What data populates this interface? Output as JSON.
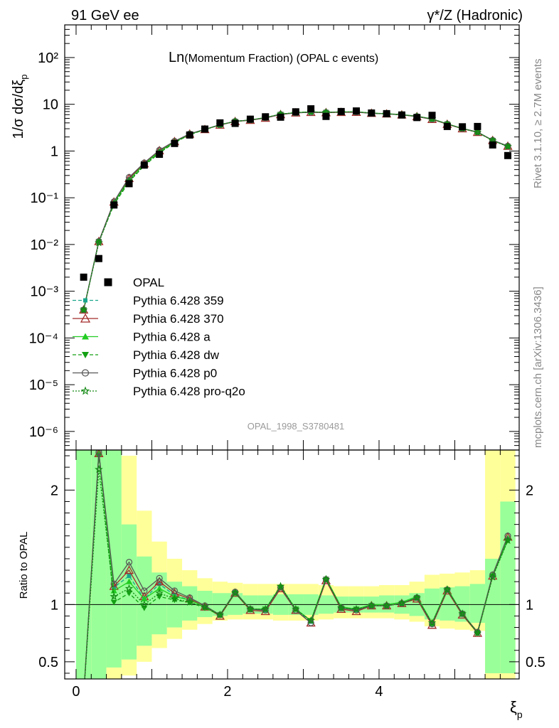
{
  "header": {
    "left": "91 GeV ee",
    "right": "γ*/Z (Hadronic)"
  },
  "title": {
    "big": "Ln",
    "rest": "(Momentum Fraction) (OPAL c events)"
  },
  "side_top": "Rivet 3.1.10, ≥ 2.7M events",
  "side_bottom": "mcplots.cern.ch [arXiv:1306.3436]",
  "analysis_label": "OPAL_1998_S3780481",
  "chart_data": [
    {
      "type": "scatter",
      "name": "main",
      "ylabel": "1/σ dσ/dξp",
      "yscale": "log",
      "ylim": [
        4e-07,
        500
      ],
      "xlim": [
        -0.15,
        5.85
      ],
      "y_ticks": [
        {
          "v": 100,
          "label": "10²"
        },
        {
          "v": 10,
          "label": "10"
        },
        {
          "v": 1,
          "label": "1"
        },
        {
          "v": 0.1,
          "label": "10⁻¹"
        },
        {
          "v": 0.01,
          "label": "10⁻²"
        },
        {
          "v": 0.001,
          "label": "10⁻³"
        },
        {
          "v": 0.0001,
          "label": "10⁻⁴"
        },
        {
          "v": 1e-05,
          "label": "10⁻⁵"
        },
        {
          "v": 1e-06,
          "label": "10⁻⁶"
        }
      ],
      "x": [
        0.1,
        0.3,
        0.5,
        0.7,
        0.9,
        1.1,
        1.3,
        1.5,
        1.7,
        1.9,
        2.1,
        2.3,
        2.5,
        2.7,
        2.9,
        3.1,
        3.3,
        3.5,
        3.7,
        3.9,
        4.1,
        4.3,
        4.5,
        4.7,
        4.9,
        5.1,
        5.3,
        5.5,
        5.7
      ],
      "data": {
        "name": "OPAL",
        "y": [
          0.002,
          0.005,
          0.07,
          0.2,
          0.5,
          0.85,
          1.45,
          2.2,
          2.95,
          4.0,
          3.9,
          4.8,
          5.4,
          5.3,
          6.9,
          8.0,
          5.5,
          7.0,
          7.2,
          6.5,
          6.3,
          5.9,
          5.2,
          5.8,
          3.35,
          3.3,
          3.35,
          1.35,
          0.8
        ]
      },
      "legend": [
        {
          "name": "OPAL",
          "color": "#000000",
          "marker": "square",
          "dash": "none"
        },
        {
          "name": "Pythia 6.428 359",
          "color": "#1aa68c",
          "marker": "smallsquare",
          "dash": "dashed"
        },
        {
          "name": "Pythia 6.428 370",
          "color": "#a52a2a",
          "marker": "opentriangle",
          "dash": "solid"
        },
        {
          "name": "Pythia 6.428 a",
          "color": "#22cc22",
          "marker": "triangle",
          "dash": "solid"
        },
        {
          "name": "Pythia 6.428 dw",
          "color": "#14a014",
          "marker": "invtriangle",
          "dash": "dashed"
        },
        {
          "name": "Pythia 6.428 p0",
          "color": "#555555",
          "marker": "opencircle",
          "dash": "solid"
        },
        {
          "name": "Pythia 6.428 pro-q2o",
          "color": "#118811",
          "marker": "star",
          "dash": "dotted"
        }
      ]
    },
    {
      "type": "line",
      "name": "ratio",
      "ylabel": "Ratio to OPAL",
      "ylim": [
        0.35,
        2.35
      ],
      "xlim": [
        -0.15,
        5.85
      ],
      "xlabel": "ξp",
      "x_ticks": [
        {
          "v": 0,
          "label": "0"
        },
        {
          "v": 2,
          "label": "2"
        },
        {
          "v": 4,
          "label": "4"
        }
      ],
      "y_ticks": [
        {
          "v": 2,
          "label": "2"
        },
        {
          "v": 1,
          "label": "1"
        },
        {
          "v": 0.5,
          "label": "0.5"
        }
      ],
      "x": [
        0.1,
        0.3,
        0.5,
        0.7,
        0.9,
        1.1,
        1.3,
        1.5,
        1.7,
        1.9,
        2.1,
        2.3,
        2.5,
        2.7,
        2.9,
        3.1,
        3.3,
        3.5,
        3.7,
        3.9,
        4.1,
        4.3,
        4.5,
        4.7,
        4.9,
        5.1,
        5.3,
        5.5,
        5.7
      ],
      "band_green": [
        [
          0,
          2.4
        ],
        [
          0,
          2.4
        ],
        [
          0.45,
          2.4
        ],
        [
          0.52,
          1.7
        ],
        [
          0.64,
          1.42
        ],
        [
          0.74,
          1.28
        ],
        [
          0.8,
          1.2
        ],
        [
          0.86,
          1.16
        ],
        [
          0.89,
          1.12
        ],
        [
          0.9,
          1.1
        ],
        [
          0.91,
          1.1
        ],
        [
          0.92,
          1.08
        ],
        [
          0.92,
          1.08
        ],
        [
          0.91,
          1.09
        ],
        [
          0.91,
          1.09
        ],
        [
          0.91,
          1.09
        ],
        [
          0.92,
          1.08
        ],
        [
          0.93,
          1.07
        ],
        [
          0.93,
          1.07
        ],
        [
          0.93,
          1.07
        ],
        [
          0.93,
          1.08
        ],
        [
          0.92,
          1.08
        ],
        [
          0.9,
          1.1
        ],
        [
          0.87,
          1.14
        ],
        [
          0.86,
          1.15
        ],
        [
          0.85,
          1.16
        ],
        [
          0.84,
          1.18
        ],
        [
          0.4,
          1.4
        ],
        [
          0.4,
          1.9
        ]
      ],
      "band_yellow": [
        [
          0,
          2.4
        ],
        [
          0,
          2.4
        ],
        [
          0.33,
          2.4
        ],
        [
          0.38,
          2.3
        ],
        [
          0.5,
          1.82
        ],
        [
          0.62,
          1.55
        ],
        [
          0.7,
          1.4
        ],
        [
          0.78,
          1.3
        ],
        [
          0.83,
          1.23
        ],
        [
          0.86,
          1.2
        ],
        [
          0.87,
          1.19
        ],
        [
          0.87,
          1.18
        ],
        [
          0.87,
          1.18
        ],
        [
          0.86,
          1.18
        ],
        [
          0.86,
          1.18
        ],
        [
          0.86,
          1.18
        ],
        [
          0.87,
          1.17
        ],
        [
          0.88,
          1.16
        ],
        [
          0.88,
          1.16
        ],
        [
          0.88,
          1.16
        ],
        [
          0.88,
          1.17
        ],
        [
          0.87,
          1.17
        ],
        [
          0.85,
          1.2
        ],
        [
          0.81,
          1.26
        ],
        [
          0.79,
          1.27
        ],
        [
          0.78,
          1.28
        ],
        [
          0.77,
          1.3
        ],
        [
          0.35,
          2.4
        ],
        [
          0.35,
          2.4
        ]
      ],
      "series": [
        {
          "name": "Pythia 6.428 359",
          "y": [
            0.2,
            2.32,
            1.15,
            1.25,
            1.05,
            1.18,
            1.08,
            1.04,
            0.98,
            0.91,
            1.11,
            0.96,
            0.95,
            1.15,
            0.96,
            0.85,
            1.22,
            0.97,
            0.95,
            0.99,
            0.99,
            1.01,
            1.06,
            0.83,
            1.13,
            0.92,
            0.76,
            1.25,
            1.57
          ]
        },
        {
          "name": "Pythia 6.428 370",
          "y": [
            0.2,
            2.32,
            1.16,
            1.3,
            1.07,
            1.2,
            1.1,
            1.05,
            0.98,
            0.9,
            1.1,
            0.95,
            0.94,
            1.14,
            0.95,
            0.84,
            1.21,
            0.96,
            0.94,
            0.99,
            0.99,
            1.01,
            1.05,
            0.82,
            1.12,
            0.91,
            0.75,
            1.25,
            1.59
          ]
        },
        {
          "name": "Pythia 6.428 a",
          "y": [
            0.2,
            2.32,
            1.12,
            1.2,
            1.05,
            1.14,
            1.07,
            1.04,
            0.98,
            0.91,
            1.11,
            0.96,
            0.96,
            1.16,
            0.96,
            0.86,
            1.23,
            0.98,
            0.96,
            1.0,
            1.0,
            1.02,
            1.07,
            0.84,
            1.14,
            0.92,
            0.76,
            1.26,
            1.58
          ]
        },
        {
          "name": "Pythia 6.428 dw",
          "y": [
            0.2,
            2.3,
            1.02,
            1.1,
            0.97,
            1.07,
            1.04,
            1.02,
            0.97,
            0.91,
            1.1,
            0.96,
            0.96,
            1.15,
            0.96,
            0.86,
            1.22,
            0.97,
            0.96,
            0.99,
            0.99,
            1.01,
            1.06,
            0.83,
            1.13,
            0.92,
            0.75,
            1.25,
            1.56
          ]
        },
        {
          "name": "Pythia 6.428 p0",
          "y": [
            0.2,
            2.33,
            1.18,
            1.37,
            1.12,
            1.23,
            1.12,
            1.06,
            0.99,
            0.91,
            1.11,
            0.96,
            0.95,
            1.15,
            0.95,
            0.84,
            1.22,
            0.97,
            0.95,
            0.99,
            0.99,
            1.01,
            1.06,
            0.83,
            1.13,
            0.92,
            0.76,
            1.26,
            1.6
          ]
        },
        {
          "name": "Pythia 6.428 pro-q2o",
          "y": [
            0.2,
            2.18,
            1.07,
            1.14,
            1.0,
            1.1,
            1.05,
            1.02,
            0.98,
            0.91,
            1.1,
            0.96,
            0.96,
            1.16,
            0.96,
            0.86,
            1.22,
            0.97,
            0.96,
            0.99,
            0.99,
            1.01,
            1.06,
            0.84,
            1.13,
            0.92,
            0.75,
            1.24,
            1.56
          ]
        }
      ]
    }
  ]
}
